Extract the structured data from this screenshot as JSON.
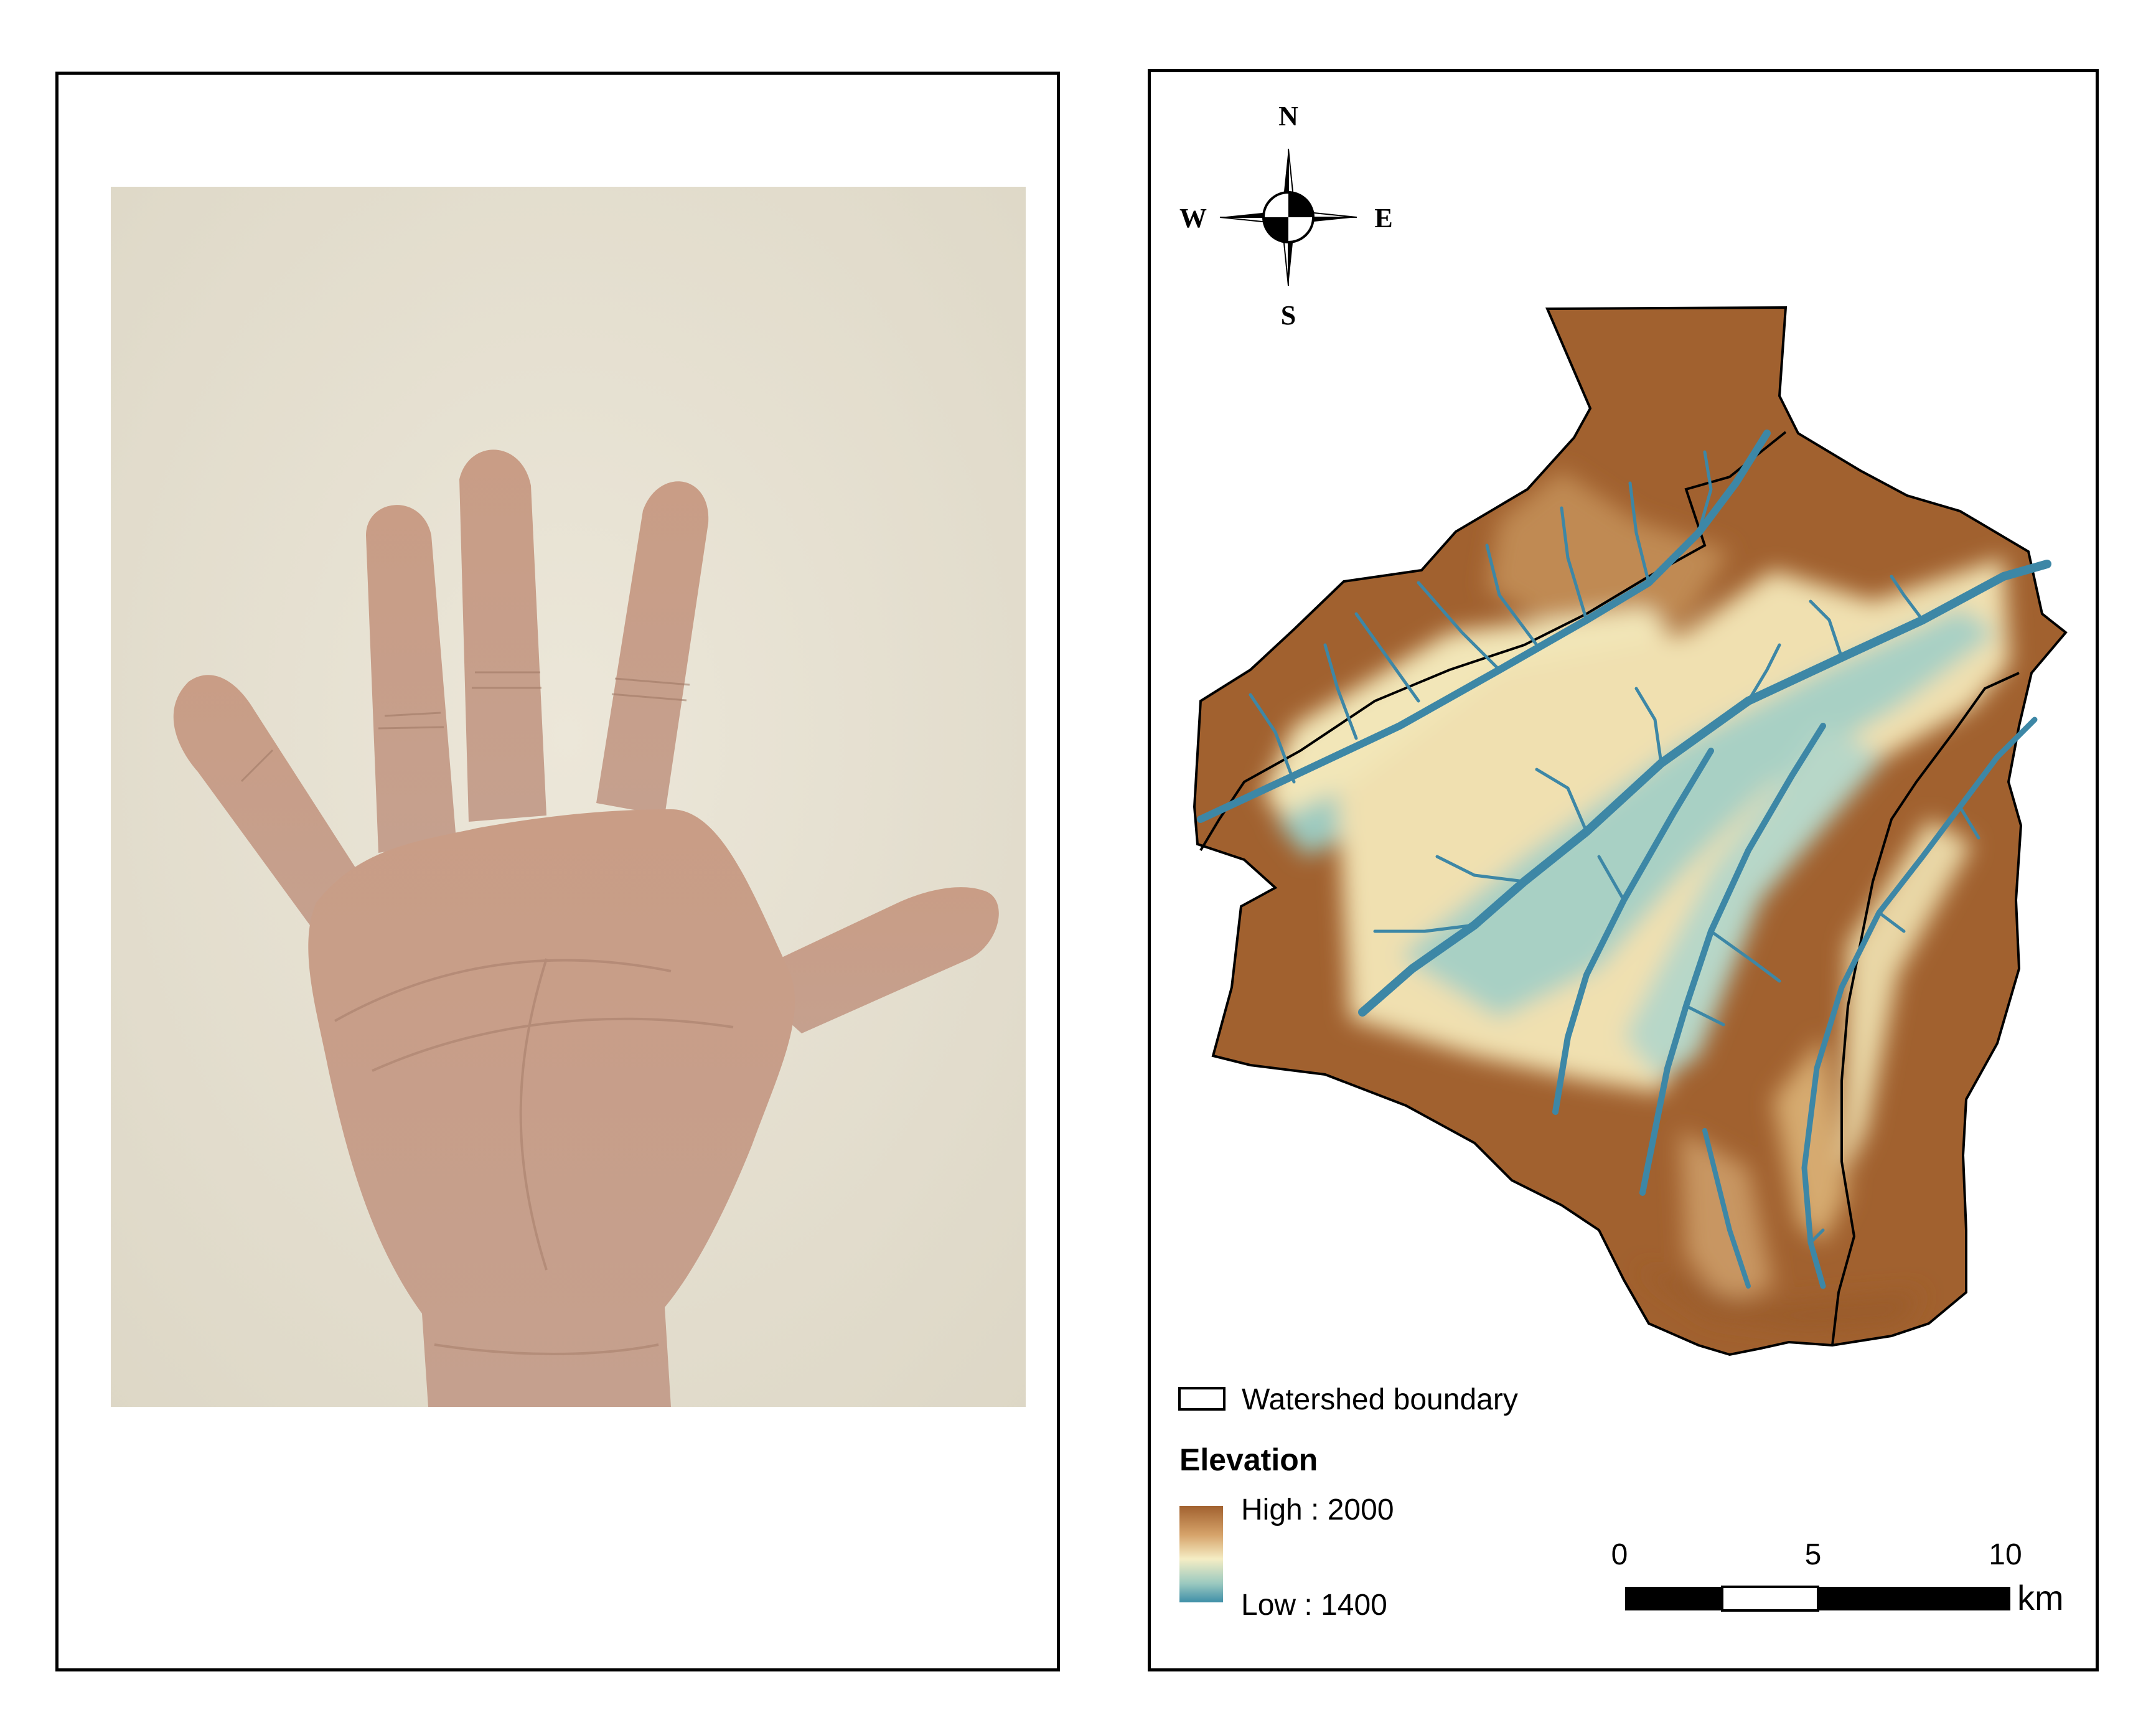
{
  "compass": {
    "n": "N",
    "s": "S",
    "e": "E",
    "w": "W"
  },
  "legend": {
    "boundary_label": "Watershed boundary",
    "title": "Elevation",
    "high_label": "High : 2000",
    "low_label": "Low : 1400",
    "high_value": 2000,
    "low_value": 1400,
    "ramp_colors": [
      "#a1612f",
      "#d6a36a",
      "#f5edc4",
      "#9ccac0",
      "#3f8fa8"
    ]
  },
  "scalebar": {
    "ticks": [
      "0",
      "5",
      "10"
    ],
    "unit": "km"
  },
  "colors": {
    "stream": "#3d87a6",
    "high_elevation": "#a1612f",
    "wall": "#e9e4d6",
    "skin": "#c9a089"
  }
}
